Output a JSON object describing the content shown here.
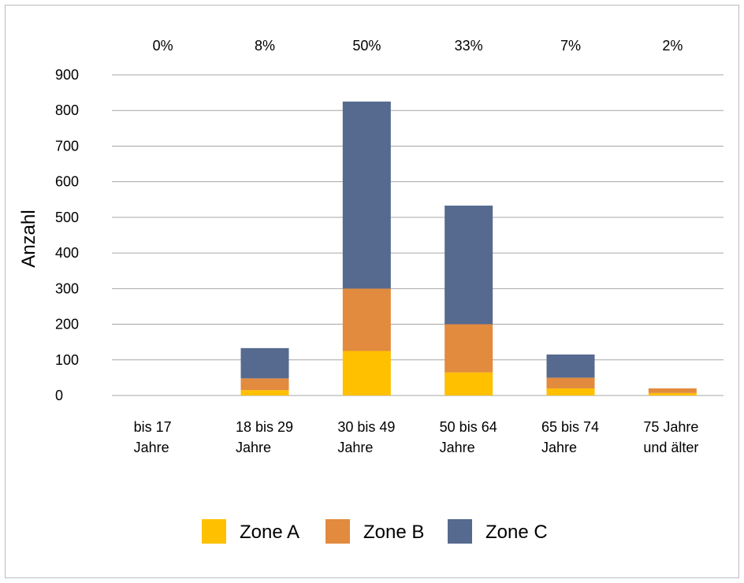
{
  "chart_data": {
    "type": "bar",
    "stacked": true,
    "categories": [
      [
        "bis 17",
        "Jahre"
      ],
      [
        "18 bis 29",
        "Jahre"
      ],
      [
        "30 bis 49",
        "Jahre"
      ],
      [
        "50 bis 64",
        "Jahre"
      ],
      [
        "65 bis 74",
        "Jahre"
      ],
      [
        "75 Jahre",
        "und älter"
      ]
    ],
    "percentages": [
      "0%",
      "8%",
      "50%",
      "33%",
      "7%",
      "2%"
    ],
    "series": [
      {
        "name": "Zone A",
        "color": "#FFC000",
        "values": [
          0,
          15,
          125,
          65,
          20,
          7
        ]
      },
      {
        "name": "Zone B",
        "color": "#E28A3E",
        "values": [
          0,
          33,
          175,
          135,
          30,
          13
        ]
      },
      {
        "name": "Zone C",
        "color": "#566A8F",
        "values": [
          0,
          85,
          525,
          333,
          65,
          0
        ]
      }
    ],
    "ylabel": "Anzahl",
    "ylim": [
      0,
      900
    ],
    "yticks": [
      "0",
      "100",
      "200",
      "300",
      "400",
      "500",
      "600",
      "700",
      "800",
      "900"
    ],
    "grid": true,
    "legend_position": "bottom"
  }
}
